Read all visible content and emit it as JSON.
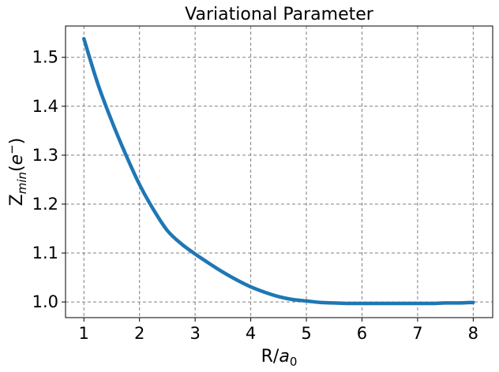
{
  "chart_data": {
    "type": "line",
    "title": "Variational Parameter",
    "xlabel": {
      "main": "R/",
      "var": "a",
      "sub": "0"
    },
    "ylabel": {
      "main": "Z",
      "sub": "min",
      "open": "(",
      "var": "e",
      "sup": "−",
      "close": ")"
    },
    "xlim": [
      0.67,
      8.35
    ],
    "ylim": [
      0.968,
      1.564
    ],
    "xticks": [
      1,
      2,
      3,
      4,
      5,
      6,
      7,
      8
    ],
    "yticks": [
      1.0,
      1.1,
      1.2,
      1.3,
      1.4,
      1.5
    ],
    "ytick_labels": [
      "1.0",
      "1.1",
      "1.2",
      "1.3",
      "1.4",
      "1.5"
    ],
    "xtick_labels": [
      "1",
      "2",
      "3",
      "4",
      "5",
      "6",
      "7",
      "8"
    ],
    "grid": true,
    "series": [
      {
        "color": "#1f77b4",
        "x": [
          1.0,
          1.25,
          1.5,
          1.75,
          2.0,
          2.25,
          2.5,
          2.75,
          3.0,
          3.25,
          3.5,
          3.75,
          4.0,
          4.25,
          4.5,
          4.75,
          5.0,
          5.25,
          5.5,
          5.75,
          6.0,
          6.25,
          6.5,
          6.75,
          7.0,
          7.25,
          7.5,
          7.75,
          8.0
        ],
        "y": [
          1.538,
          1.446,
          1.37,
          1.302,
          1.24,
          1.189,
          1.146,
          1.119,
          1.098,
          1.079,
          1.061,
          1.045,
          1.031,
          1.02,
          1.011,
          1.005,
          1.002,
          0.999,
          0.998,
          0.997,
          0.997,
          0.997,
          0.997,
          0.997,
          0.997,
          0.997,
          0.998,
          0.998,
          0.999
        ]
      }
    ]
  }
}
